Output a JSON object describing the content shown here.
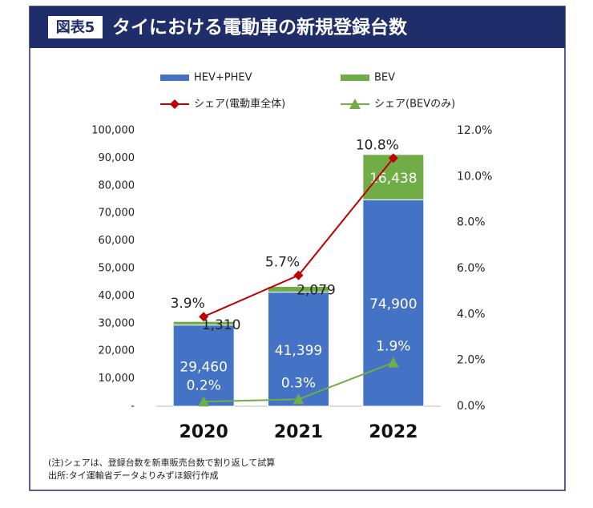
{
  "chart_data": {
    "type": "bar",
    "stacked": true,
    "badge": "図表5",
    "title": "タイにおける電動車の新規登録台数",
    "categories": [
      "2020",
      "2021",
      "2022"
    ],
    "series": [
      {
        "name": "HEV+PHEV",
        "type": "bar",
        "color": "#4472c4",
        "values": [
          29460,
          41399,
          74900
        ],
        "value_labels": [
          "29,460",
          "41,399",
          "74,900"
        ]
      },
      {
        "name": "BEV",
        "type": "bar",
        "color": "#70ad47",
        "values": [
          1310,
          2079,
          16438
        ],
        "value_labels": [
          "1,310",
          "2,079",
          "16,438"
        ]
      },
      {
        "name": "シェア(電動車全体)",
        "type": "line",
        "marker": "diamond",
        "axis": "y2",
        "color": "#c00000",
        "values": [
          3.9,
          5.7,
          10.8
        ],
        "value_labels": [
          "3.9%",
          "5.7%",
          "10.8%"
        ]
      },
      {
        "name": "シェア(BEVのみ)",
        "type": "line",
        "marker": "triangle",
        "axis": "y2",
        "color": "#70ad47",
        "values": [
          0.2,
          0.3,
          1.9
        ],
        "value_labels": [
          "0.2%",
          "0.3%",
          "1.9%"
        ]
      }
    ],
    "ylim": [
      0,
      100000
    ],
    "yticks": [
      {
        "value": 0,
        "label": "-"
      },
      {
        "value": 10000,
        "label": "10,000"
      },
      {
        "value": 20000,
        "label": "20,000"
      },
      {
        "value": 30000,
        "label": "30,000"
      },
      {
        "value": 40000,
        "label": "40,000"
      },
      {
        "value": 50000,
        "label": "50,000"
      },
      {
        "value": 60000,
        "label": "60,000"
      },
      {
        "value": 70000,
        "label": "70,000"
      },
      {
        "value": 80000,
        "label": "80,000"
      },
      {
        "value": 90000,
        "label": "90,000"
      },
      {
        "value": 100000,
        "label": "100,000"
      }
    ],
    "y2lim": [
      0,
      12
    ],
    "y2ticks": [
      {
        "value": 0,
        "label": "0.0%"
      },
      {
        "value": 2,
        "label": "2.0%"
      },
      {
        "value": 4,
        "label": "4.0%"
      },
      {
        "value": 6,
        "label": "6.0%"
      },
      {
        "value": 8,
        "label": "8.0%"
      },
      {
        "value": 10,
        "label": "10.0%"
      },
      {
        "value": 12,
        "label": "12.0%"
      }
    ],
    "notes": [
      "(注)シェアは、登録台数を新車販売台数で割り返して試算",
      "出所:タイ運輸省データよりみずほ銀行作成"
    ]
  }
}
